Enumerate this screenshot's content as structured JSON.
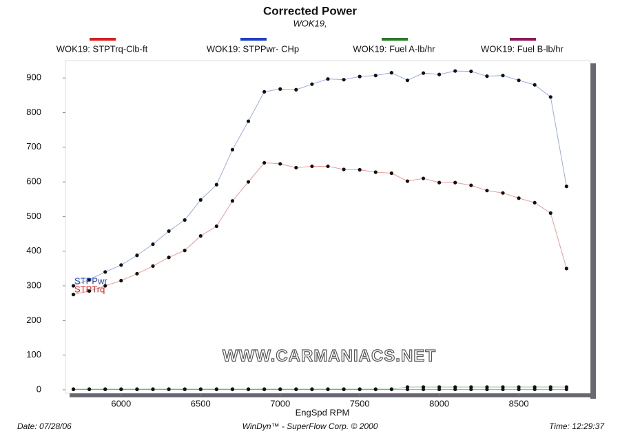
{
  "chart_data": {
    "type": "line",
    "title": "Corrected Power",
    "subtitle": "WOK19,",
    "x_label": "EngSpd  RPM",
    "footer_left": "Date: 07/28/06",
    "footer_center": "WinDyn™ - SuperFlow Corp. © 2000",
    "footer_right": "Time: 12:29:37",
    "watermark": "WWW.CARMANIACS.NET",
    "annotations": [
      {
        "text": "STPPwr",
        "color": "#2040c0"
      },
      {
        "text": "STPTrq",
        "color": "#d42020"
      }
    ],
    "x": [
      5700,
      5800,
      5900,
      6000,
      6100,
      6200,
      6300,
      6400,
      6500,
      6600,
      6700,
      6800,
      6900,
      7000,
      7100,
      7200,
      7300,
      7400,
      7500,
      7600,
      7700,
      7800,
      7900,
      8000,
      8100,
      8200,
      8300,
      8400,
      8500,
      8600,
      8700,
      8800
    ],
    "series": [
      {
        "name": "WOK19: STPTrq-Clb-ft",
        "color": "#d42020",
        "values": [
          275,
          285,
          300,
          315,
          335,
          357,
          382,
          402,
          444,
          472,
          545,
          600,
          655,
          652,
          641,
          645,
          645,
          636,
          635,
          628,
          625,
          602,
          610,
          598,
          598,
          590,
          575,
          568,
          553,
          540,
          510,
          350
        ]
      },
      {
        "name": "WOK19: STPPwr- CHp",
        "color": "#2040c0",
        "values": [
          300,
          318,
          340,
          360,
          388,
          420,
          458,
          490,
          548,
          592,
          693,
          775,
          860,
          868,
          866,
          882,
          897,
          895,
          904,
          907,
          915,
          893,
          914,
          910,
          920,
          919,
          905,
          907,
          893,
          880,
          845,
          587
        ]
      },
      {
        "name": "WOK19: Fuel A-lb/hr",
        "color": "#2a7a2a",
        "values": [
          2,
          2,
          2,
          2,
          2,
          2,
          2,
          2,
          2,
          2,
          2,
          2,
          2,
          2,
          2,
          2,
          2,
          2,
          2,
          2,
          2,
          8,
          8,
          8,
          8,
          8,
          8,
          8,
          8,
          8,
          8,
          8
        ]
      },
      {
        "name": "WOK19: Fuel B-lb/hr",
        "color": "#8a1a5a",
        "values": [
          1,
          1,
          1,
          1,
          1,
          1,
          1,
          1,
          1,
          1,
          1,
          1,
          1,
          1,
          1,
          1,
          1,
          1,
          1,
          1,
          1,
          1,
          1,
          1,
          1,
          1,
          1,
          1,
          1,
          1,
          1,
          1
        ]
      }
    ],
    "xlim": [
      5650,
      8950
    ],
    "ylim": [
      -10,
      950
    ],
    "xticks": [
      6000,
      6500,
      7000,
      7500,
      8000,
      8500
    ],
    "yticks": [
      0,
      100,
      200,
      300,
      400,
      500,
      600,
      700,
      800,
      900
    ],
    "grid": false
  }
}
